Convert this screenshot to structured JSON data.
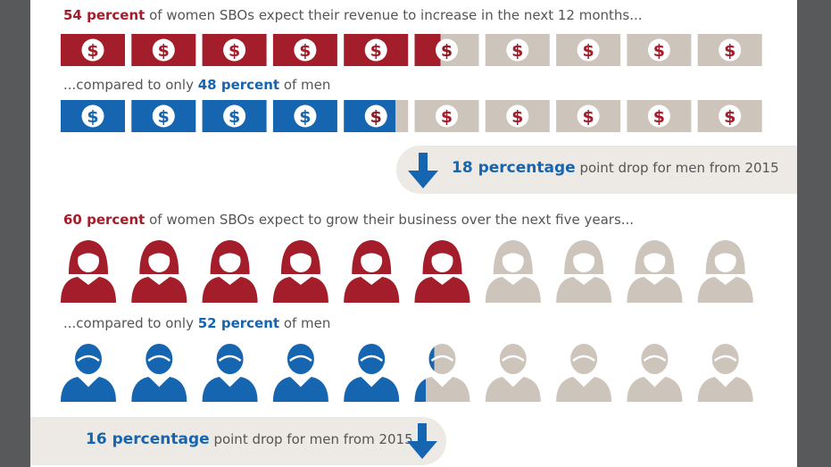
{
  "revenue": {
    "women_value": "54 percent",
    "women_text": " of women SBOs expect their revenue to increase in the next 12 months...",
    "men_prefix": "...compared to only ",
    "men_value": "48 percent",
    "men_suffix": " of men",
    "women_percent": 54,
    "men_percent": 48,
    "drop_value": "18 percentage",
    "drop_text": " point drop for men from 2015",
    "icon": "dollar-bill-icon"
  },
  "growth": {
    "women_value": "60 percent",
    "women_text": " of women SBOs expect to grow their business over the next five years...",
    "men_prefix": "...compared to only ",
    "men_value": "52 percent",
    "men_suffix": " of men",
    "women_percent": 60,
    "men_percent": 52,
    "drop_value": "16 percentage",
    "drop_text": " point drop for men from 2015",
    "icon": "person-icon"
  },
  "colors": {
    "red": "#a31d2a",
    "blue": "#1565b0",
    "gray": "#cdc4bb",
    "pill": "#ede9e4",
    "frame": "#58595b"
  }
}
